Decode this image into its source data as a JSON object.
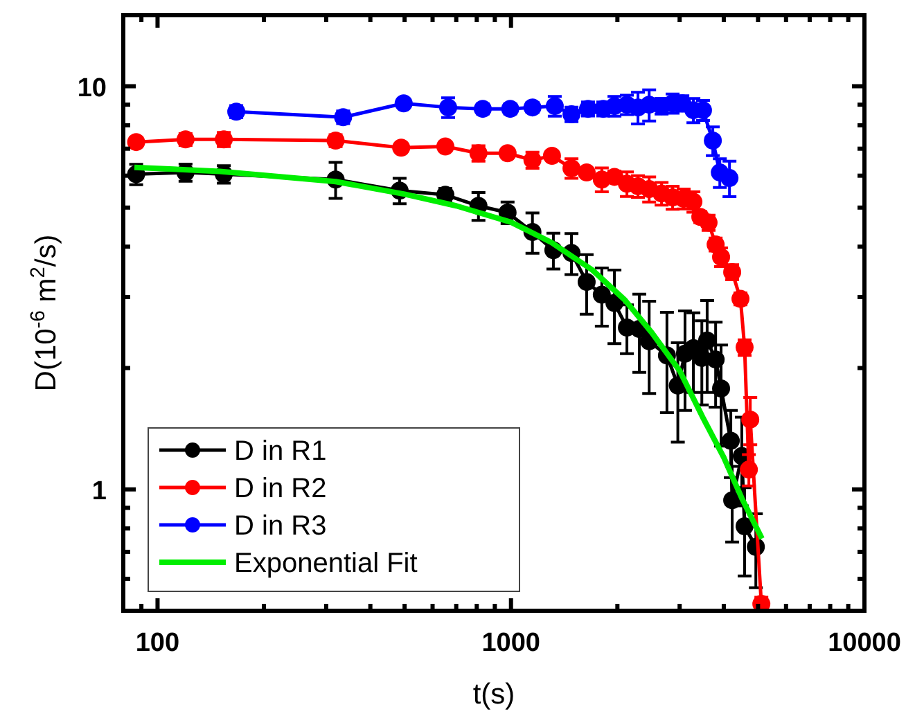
{
  "chart_data": {
    "type": "line",
    "xlabel": "t(s)",
    "ylabel": "D(10$^{-6}$ m$^{2}$/s)",
    "log": "xy",
    "grid": false,
    "legend": "bottom left",
    "marker": "circle",
    "line_style": "solid",
    "xlim": [
      80,
      10000
    ],
    "xticks": [
      {
        "value": 90,
        "label": null
      },
      100,
      {
        "value": 200,
        "label": null
      },
      {
        "value": 300,
        "label": null
      },
      {
        "value": 400,
        "label": null
      },
      {
        "value": 500,
        "label": null
      },
      {
        "value": 600,
        "label": null
      },
      {
        "value": 700,
        "label": null
      },
      {
        "value": 800,
        "label": null
      },
      {
        "value": 900,
        "label": null
      },
      1000,
      {
        "value": 2000,
        "label": null
      },
      {
        "value": 3000,
        "label": null
      },
      {
        "value": 4000,
        "label": null
      },
      {
        "value": 5000,
        "label": null
      },
      {
        "value": 6000,
        "label": null
      },
      {
        "value": 7000,
        "label": null
      },
      {
        "value": 8000,
        "label": null
      },
      {
        "value": 9000,
        "label": null
      },
      10000
    ],
    "ylim": [
      0.5,
      15
    ],
    "yticks": [
      {
        "value": 0.5,
        "label": null
      },
      {
        "value": 0.6,
        "label": null
      },
      {
        "value": 0.7,
        "label": null
      },
      {
        "value": 0.8,
        "label": null
      },
      {
        "value": 0.9,
        "label": null
      },
      1,
      {
        "value": 2,
        "label": null
      },
      {
        "value": 3,
        "label": null
      },
      {
        "value": 4,
        "label": null
      },
      {
        "value": 5,
        "label": null
      },
      {
        "value": 6,
        "label": null
      },
      {
        "value": 7,
        "label": null
      },
      {
        "value": 8,
        "label": null
      },
      {
        "value": 9,
        "label": null
      },
      10
    ],
    "series": [
      {
        "name": "D in R1",
        "color": "#000000",
        "x": [
          87,
          120,
          154,
          319,
          484,
          652,
          809,
          978,
          1150,
          1318,
          1483,
          1637,
          1807,
          1962,
          2128,
          2307,
          2460,
          2762,
          2965,
          3107,
          3282,
          3467,
          3589,
          3793,
          3930,
          4187,
          4225,
          4498,
          4581,
          4929
        ],
        "values": [
          6.05,
          6.11,
          6.05,
          5.87,
          5.51,
          5.38,
          5.05,
          4.86,
          4.35,
          3.92,
          3.86,
          3.27,
          3.04,
          2.9,
          2.52,
          2.5,
          2.33,
          2.15,
          1.81,
          2.17,
          2.24,
          2.12,
          2.34,
          2.1,
          1.78,
          1.32,
          0.94,
          1.21,
          0.81,
          0.72
        ],
        "errors": [
          0.35,
          0.3,
          0.3,
          0.6,
          0.4,
          0.2,
          0.4,
          0.3,
          0.5,
          0.4,
          0.45,
          0.55,
          0.5,
          0.6,
          0.35,
          0.55,
          0.6,
          0.6,
          0.5,
          0.6,
          0.5,
          0.5,
          0.6,
          0.5,
          0.5,
          0.25,
          0.2,
          0.3,
          0.2,
          0.15
        ]
      },
      {
        "name": "D in R2",
        "color": "#ff0000",
        "x": [
          87,
          120,
          154,
          319,
          489,
          652,
          809,
          978,
          1150,
          1306,
          1483,
          1637,
          1807,
          1962,
          2128,
          2287,
          2460,
          2667,
          2866,
          3080,
          3282,
          3433,
          3622,
          3793,
          3930,
          4225,
          4459,
          4581,
          4710,
          4753,
          5109
        ],
        "values": [
          7.27,
          7.38,
          7.38,
          7.33,
          7.04,
          7.09,
          6.82,
          6.82,
          6.56,
          6.72,
          6.26,
          6.11,
          5.87,
          5.96,
          5.73,
          5.65,
          5.56,
          5.42,
          5.3,
          5.26,
          5.17,
          4.74,
          4.59,
          4.05,
          3.77,
          3.46,
          2.97,
          2.25,
          1.12,
          1.49,
          0.52
        ],
        "errors": [
          0.2,
          0.25,
          0.3,
          0.25,
          0.15,
          0.15,
          0.3,
          0.15,
          0.3,
          0.15,
          0.35,
          0.15,
          0.4,
          0.2,
          0.4,
          0.35,
          0.4,
          0.35,
          0.35,
          0.3,
          0.3,
          0.15,
          0.2,
          0.15,
          0.2,
          0.15,
          0.1,
          0.1,
          0.1,
          0.2,
          0.02
        ]
      },
      {
        "name": "D in R3",
        "color": "#0000ff",
        "x": [
          167,
          335,
          497,
          664,
          832,
          995,
          1150,
          1330,
          1483,
          1652,
          1824,
          1962,
          2128,
          2287,
          2460,
          2667,
          2866,
          3054,
          3282,
          3493,
          3724,
          3898,
          4151
        ],
        "values": [
          8.65,
          8.38,
          9.07,
          8.86,
          8.79,
          8.79,
          8.86,
          8.93,
          8.52,
          8.79,
          8.79,
          8.93,
          9.0,
          8.86,
          9.0,
          8.93,
          9.07,
          9.07,
          8.72,
          8.72,
          7.33,
          6.11,
          5.92
        ],
        "errors": [
          0.3,
          0.3,
          0.2,
          0.5,
          0.25,
          0.25,
          0.25,
          0.5,
          0.35,
          0.35,
          0.35,
          0.5,
          0.5,
          0.8,
          0.8,
          0.4,
          0.5,
          0.4,
          0.6,
          0.5,
          0.6,
          0.5,
          0.6
        ]
      },
      {
        "name": "Exponential Fit",
        "type": "line",
        "marker": "none",
        "color": "#00ee00",
        "x": [
          86,
          150,
          319,
          500,
          700,
          1000,
          1300,
          1700,
          2100,
          2500,
          3000,
          3500,
          4000,
          4500,
          5130
        ],
        "values": [
          6.29,
          6.15,
          5.8,
          5.4,
          5.05,
          4.6,
          4.1,
          3.5,
          2.95,
          2.45,
          1.97,
          1.5,
          1.2,
          0.95,
          0.755
        ]
      }
    ]
  }
}
